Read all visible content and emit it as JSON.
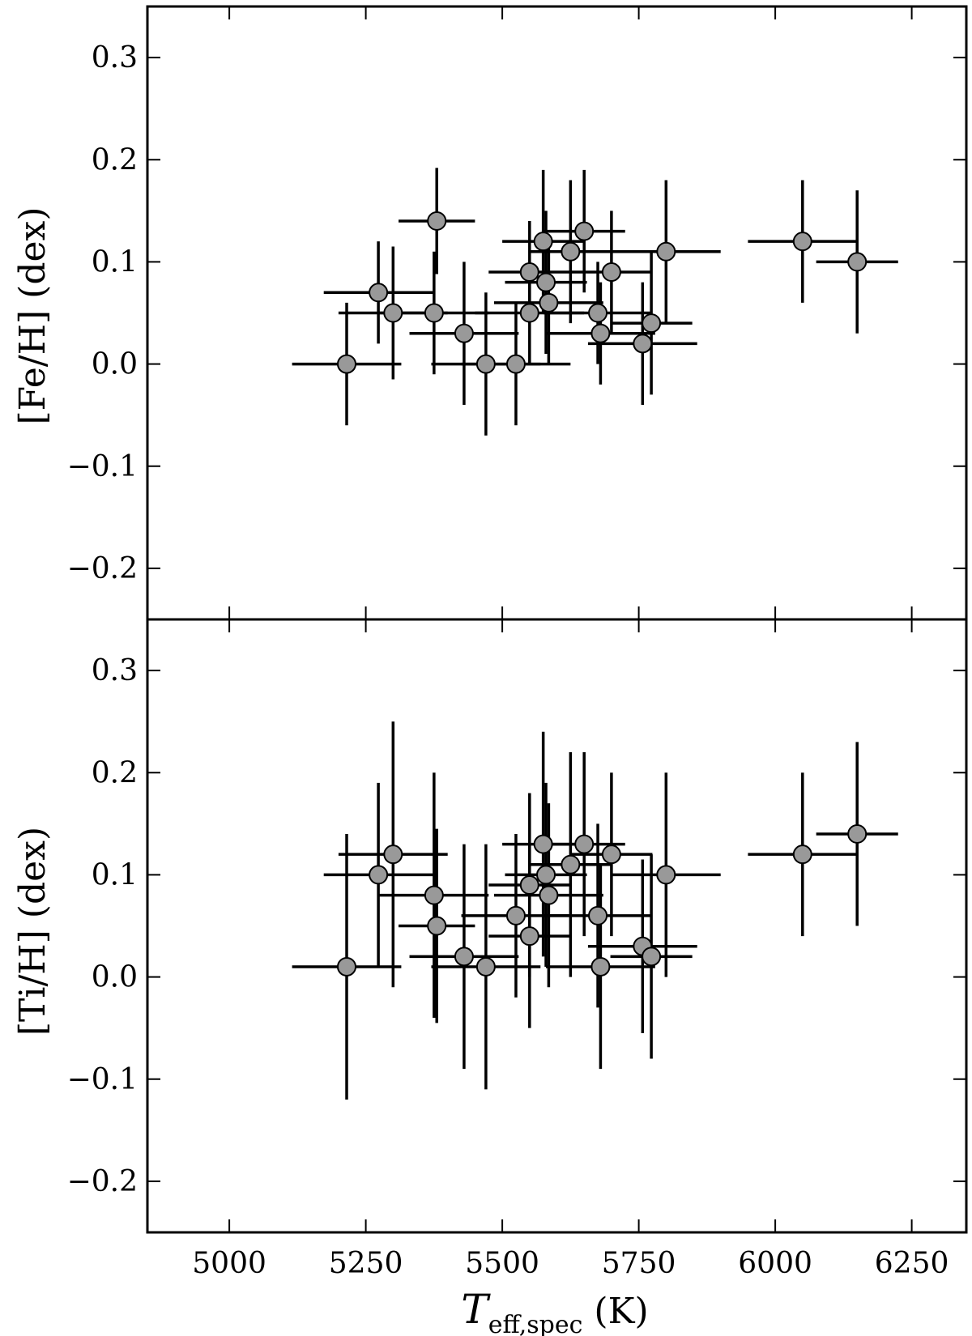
{
  "chart_data": [
    {
      "type": "scatter",
      "panel": "top",
      "ylabel": "[Fe/H] (dex)",
      "xlim": [
        4850,
        6350
      ],
      "ylim": [
        -0.25,
        0.35
      ],
      "yticks": [
        -0.2,
        -0.1,
        0.0,
        0.1,
        0.2,
        0.3
      ],
      "ytick_labels": [
        "−0.2",
        "−0.1",
        "0.0",
        "0.1",
        "0.2",
        "0.3"
      ],
      "marker_color": "#999999",
      "points": [
        {
          "x": 5215,
          "y": 0.0,
          "xerr": 100,
          "yerr": 0.06
        },
        {
          "x": 5273,
          "y": 0.07,
          "xerr": 100,
          "yerr": 0.05
        },
        {
          "x": 5300,
          "y": 0.05,
          "xerr": 100,
          "yerr": 0.065
        },
        {
          "x": 5375,
          "y": 0.05,
          "xerr": 100,
          "yerr": 0.06
        },
        {
          "x": 5380,
          "y": 0.14,
          "xerr": 70,
          "yerr": 0.052
        },
        {
          "x": 5430,
          "y": 0.03,
          "xerr": 100,
          "yerr": 0.07
        },
        {
          "x": 5470,
          "y": 0.0,
          "xerr": 100,
          "yerr": 0.07
        },
        {
          "x": 5525,
          "y": 0.0,
          "xerr": 100,
          "yerr": 0.06
        },
        {
          "x": 5550,
          "y": 0.05,
          "xerr": 100,
          "yerr": 0.05
        },
        {
          "x": 5550,
          "y": 0.09,
          "xerr": 75,
          "yerr": 0.05
        },
        {
          "x": 5575,
          "y": 0.12,
          "xerr": 75,
          "yerr": 0.07
        },
        {
          "x": 5580,
          "y": 0.08,
          "xerr": 75,
          "yerr": 0.07
        },
        {
          "x": 5585,
          "y": 0.06,
          "xerr": 100,
          "yerr": 0.06
        },
        {
          "x": 5625,
          "y": 0.11,
          "xerr": 75,
          "yerr": 0.07
        },
        {
          "x": 5650,
          "y": 0.13,
          "xerr": 75,
          "yerr": 0.06
        },
        {
          "x": 5675,
          "y": 0.05,
          "xerr": 100,
          "yerr": 0.05
        },
        {
          "x": 5680,
          "y": 0.03,
          "xerr": 100,
          "yerr": 0.05
        },
        {
          "x": 5700,
          "y": 0.09,
          "xerr": 75,
          "yerr": 0.06
        },
        {
          "x": 5757,
          "y": 0.02,
          "xerr": 100,
          "yerr": 0.06
        },
        {
          "x": 5773,
          "y": 0.04,
          "xerr": 75,
          "yerr": 0.07
        },
        {
          "x": 5800,
          "y": 0.11,
          "xerr": 100,
          "yerr": 0.07
        },
        {
          "x": 6050,
          "y": 0.12,
          "xerr": 100,
          "yerr": 0.06
        },
        {
          "x": 6150,
          "y": 0.1,
          "xerr": 75,
          "yerr": 0.07
        }
      ]
    },
    {
      "type": "scatter",
      "panel": "bottom",
      "ylabel": "[Ti/H] (dex)",
      "xlim": [
        4850,
        6350
      ],
      "ylim": [
        -0.25,
        0.35
      ],
      "yticks": [
        -0.2,
        -0.1,
        0.0,
        0.1,
        0.2,
        0.3
      ],
      "ytick_labels": [
        "−0.2",
        "−0.1",
        "0.0",
        "0.1",
        "0.2",
        "0.3"
      ],
      "marker_color": "#999999",
      "points": [
        {
          "x": 5215,
          "y": 0.01,
          "xerr": 100,
          "yerr": 0.13
        },
        {
          "x": 5273,
          "y": 0.1,
          "xerr": 100,
          "yerr": 0.09
        },
        {
          "x": 5300,
          "y": 0.12,
          "xerr": 100,
          "yerr": 0.13
        },
        {
          "x": 5375,
          "y": 0.08,
          "xerr": 100,
          "yerr": 0.12
        },
        {
          "x": 5380,
          "y": 0.05,
          "xerr": 70,
          "yerr": 0.095
        },
        {
          "x": 5430,
          "y": 0.02,
          "xerr": 100,
          "yerr": 0.11
        },
        {
          "x": 5470,
          "y": 0.01,
          "xerr": 100,
          "yerr": 0.12
        },
        {
          "x": 5525,
          "y": 0.06,
          "xerr": 100,
          "yerr": 0.08
        },
        {
          "x": 5550,
          "y": 0.04,
          "xerr": 75,
          "yerr": 0.09
        },
        {
          "x": 5550,
          "y": 0.09,
          "xerr": 75,
          "yerr": 0.09
        },
        {
          "x": 5575,
          "y": 0.13,
          "xerr": 75,
          "yerr": 0.11
        },
        {
          "x": 5580,
          "y": 0.1,
          "xerr": 75,
          "yerr": 0.09
        },
        {
          "x": 5585,
          "y": 0.08,
          "xerr": 100,
          "yerr": 0.09
        },
        {
          "x": 5625,
          "y": 0.11,
          "xerr": 75,
          "yerr": 0.11
        },
        {
          "x": 5650,
          "y": 0.13,
          "xerr": 75,
          "yerr": 0.09
        },
        {
          "x": 5675,
          "y": 0.06,
          "xerr": 100,
          "yerr": 0.09
        },
        {
          "x": 5680,
          "y": 0.01,
          "xerr": 100,
          "yerr": 0.1
        },
        {
          "x": 5700,
          "y": 0.12,
          "xerr": 75,
          "yerr": 0.08
        },
        {
          "x": 5757,
          "y": 0.03,
          "xerr": 100,
          "yerr": 0.085
        },
        {
          "x": 5773,
          "y": 0.02,
          "xerr": 75,
          "yerr": 0.1
        },
        {
          "x": 5800,
          "y": 0.1,
          "xerr": 100,
          "yerr": 0.1
        },
        {
          "x": 6050,
          "y": 0.12,
          "xerr": 100,
          "yerr": 0.08
        },
        {
          "x": 6150,
          "y": 0.14,
          "xerr": 75,
          "yerr": 0.09
        }
      ]
    }
  ],
  "shared_xaxis": {
    "xlabel_main": "T",
    "xlabel_subscript": "eff,spec",
    "xlabel_unit": " (K)",
    "xticks": [
      5000,
      5250,
      5500,
      5750,
      6000,
      6250
    ],
    "xtick_labels": [
      "5000",
      "5250",
      "5500",
      "5750",
      "6000",
      "6250"
    ]
  }
}
